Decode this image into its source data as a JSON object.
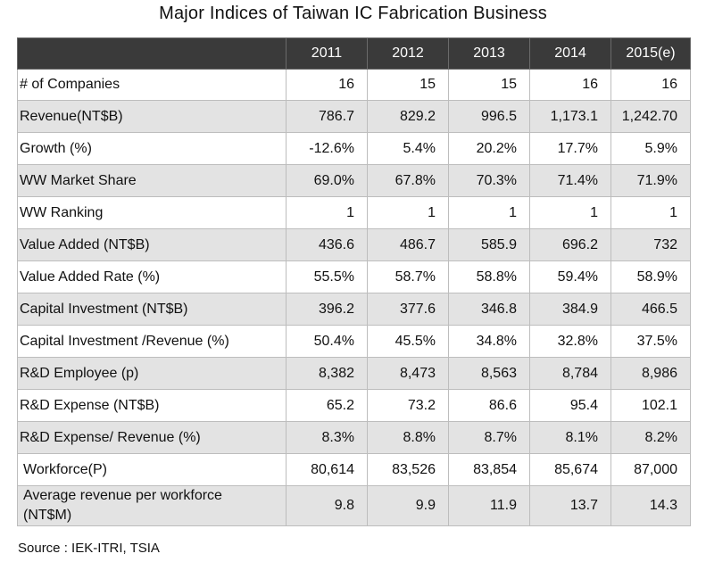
{
  "title": "Major Indices of Taiwan IC Fabrication Business",
  "source": "Source : IEK-ITRI, TSIA",
  "chart_data": {
    "type": "table",
    "title": "Major Indices of Taiwan IC Fabrication Business",
    "columns": [
      "2011",
      "2012",
      "2013",
      "2014",
      "2015(e)"
    ],
    "rows": [
      {
        "label": "# of Companies",
        "values": [
          "16",
          "15",
          "15",
          "16",
          "16"
        ]
      },
      {
        "label": "Revenue(NT$B)",
        "values": [
          "786.7",
          "829.2",
          "996.5",
          "1,173.1",
          "1,242.70"
        ]
      },
      {
        "label": "Growth (%)",
        "values": [
          "-12.6%",
          "5.4%",
          "20.2%",
          "17.7%",
          "5.9%"
        ]
      },
      {
        "label": "WW Market Share",
        "values": [
          "69.0%",
          "67.8%",
          "70.3%",
          "71.4%",
          "71.9%"
        ]
      },
      {
        "label": "WW Ranking",
        "values": [
          "1",
          "1",
          "1",
          "1",
          "1"
        ]
      },
      {
        "label": "Value Added (NT$B)",
        "values": [
          "436.6",
          "486.7",
          "585.9",
          "696.2",
          "732"
        ]
      },
      {
        "label": "Value Added Rate (%)",
        "values": [
          "55.5%",
          "58.7%",
          "58.8%",
          "59.4%",
          "58.9%"
        ]
      },
      {
        "label": "Capital Investment (NT$B)",
        "values": [
          "396.2",
          "377.6",
          "346.8",
          "384.9",
          "466.5"
        ]
      },
      {
        "label": "Capital Investment /Revenue (%)",
        "values": [
          "50.4%",
          "45.5%",
          "34.8%",
          "32.8%",
          "37.5%"
        ]
      },
      {
        "label": "R&D Employee (p)",
        "values": [
          "8,382",
          "8,473",
          "8,563",
          "8,784",
          "8,986"
        ]
      },
      {
        "label": "R&D Expense (NT$B)",
        "values": [
          "65.2",
          "73.2",
          "86.6",
          "95.4",
          "102.1"
        ]
      },
      {
        "label": "R&D Expense/ Revenue (%)",
        "values": [
          "8.3%",
          "8.8%",
          "8.7%",
          "8.1%",
          "8.2%"
        ]
      },
      {
        "label": "Workforce(P)",
        "values": [
          "80,614",
          "83,526",
          "83,854",
          "85,674",
          "87,000"
        ]
      },
      {
        "label": "Average revenue per workforce (NT$M)",
        "values": [
          "9.8",
          "9.9",
          "11.9",
          "13.7",
          "14.3"
        ]
      }
    ]
  }
}
